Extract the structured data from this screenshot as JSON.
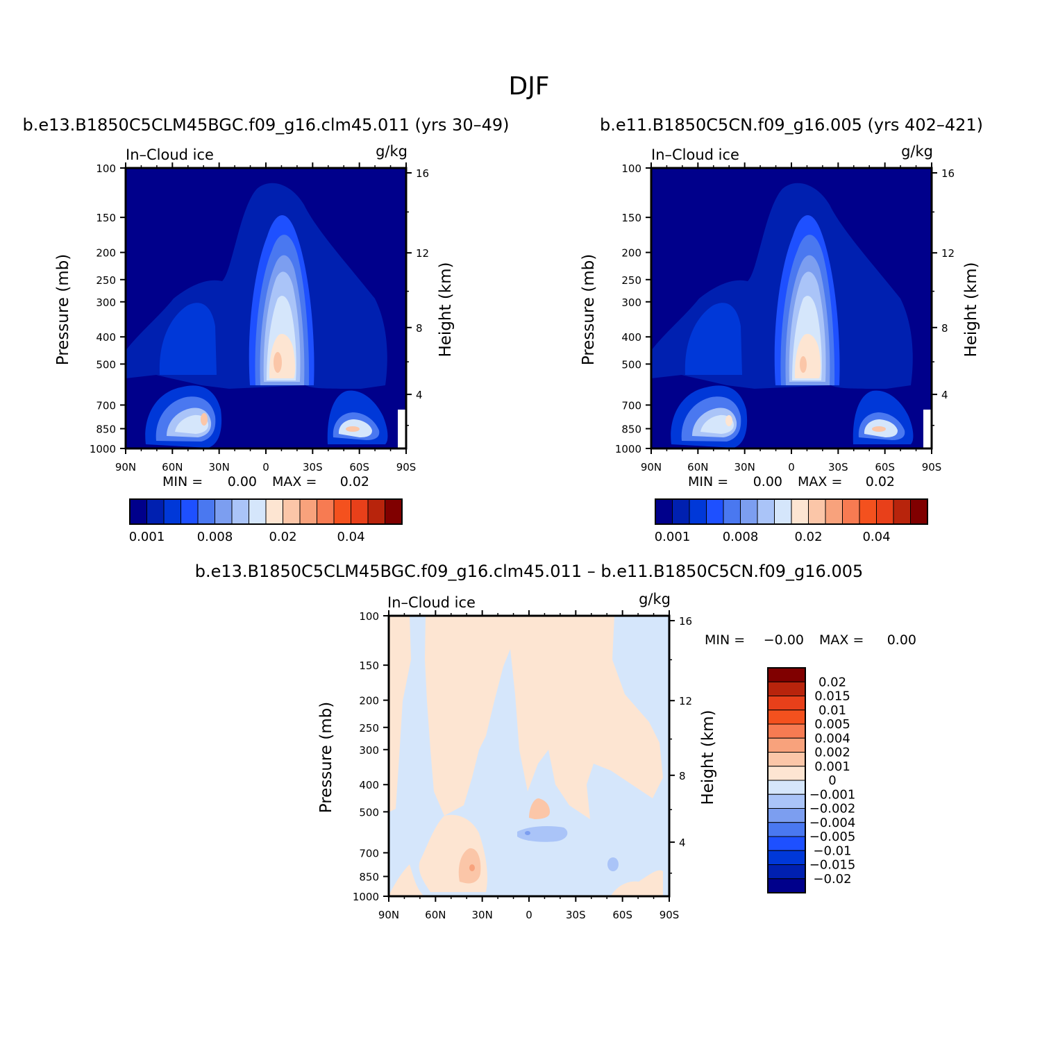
{
  "figure": {
    "season": "DJF",
    "case_a": "b.e13.B1850C5CLM45BGC.f09_g16.clm45.011 (yrs 30–49)",
    "case_b": "b.e11.B1850C5CN.f09_g16.005 (yrs 402–421)",
    "diff_title": "b.e13.B1850C5CLM45BGC.f09_g16.clm45.011 – b.e11.B1850C5CN.f09_g16.005"
  },
  "colors": {
    "seq": [
      "#00008b",
      "#0020b0",
      "#0038d8",
      "#1e50ff",
      "#4a78f0",
      "#7c9ef0",
      "#aac4f8",
      "#d5e6fb",
      "#fde5d2",
      "#fbc6a8",
      "#f8a27c",
      "#f77b52",
      "#f4511e",
      "#e8401a",
      "#b8240c",
      "#800000"
    ],
    "diff": [
      "#00008b",
      "#0020b0",
      "#0038d8",
      "#1e50ff",
      "#4a78f0",
      "#7c9ef0",
      "#aac4f8",
      "#d5e6fb",
      "#fde5d2",
      "#fbc6a8",
      "#f8a27c",
      "#f77b52",
      "#f4511e",
      "#e8401a",
      "#b8240c",
      "#800000"
    ]
  },
  "chart_data": [
    {
      "type": "heatmap",
      "id": "panel-a",
      "title": "b.e13.B1850C5CLM45BGC.f09_g16.clm45.011 (yrs 30–49)",
      "left_label": "In–Cloud ice",
      "units": "g/kg",
      "ylabel": "Pressure (mb)",
      "ylabel_right": "Height (km)",
      "x_ticks": [
        "90N",
        "60N",
        "30N",
        "0",
        "30S",
        "60S",
        "90S"
      ],
      "x_range": [
        90,
        -90
      ],
      "y_ticks": [
        100,
        150,
        200,
        250,
        300,
        400,
        500,
        700,
        850,
        1000
      ],
      "y_range": [
        100,
        1000
      ],
      "height_ticks": [
        16,
        12,
        8,
        4
      ],
      "min_label": "MIN =",
      "min_value": "0.00",
      "max_label": "MAX =",
      "max_value": "0.02",
      "colorbar_labels": [
        "0.001",
        "0.008",
        "0.02",
        "0.04"
      ],
      "features": [
        {
          "lat": -5,
          "p_center": 420,
          "p_top": 120,
          "p_bottom": 620,
          "peak": 0.02,
          "desc": "tropical upper maximum"
        },
        {
          "lat": 45,
          "p_center": 780,
          "p_top": 650,
          "p_bottom": 930,
          "peak": 0.02,
          "desc": "NH midlatitude low-level maximum"
        },
        {
          "lat": -58,
          "p_center": 820,
          "p_top": 690,
          "p_bottom": 930,
          "peak": 0.02,
          "desc": "SH midlatitude low-level maximum"
        }
      ]
    },
    {
      "type": "heatmap",
      "id": "panel-b",
      "title": "b.e11.B1850C5CN.f09_g16.005 (yrs 402–421)",
      "left_label": "In–Cloud ice",
      "units": "g/kg",
      "ylabel": "Pressure (mb)",
      "ylabel_right": "Height (km)",
      "x_ticks": [
        "90N",
        "60N",
        "30N",
        "0",
        "30S",
        "60S",
        "90S"
      ],
      "x_range": [
        90,
        -90
      ],
      "y_ticks": [
        100,
        150,
        200,
        250,
        300,
        400,
        500,
        700,
        850,
        1000
      ],
      "y_range": [
        100,
        1000
      ],
      "height_ticks": [
        16,
        12,
        8,
        4
      ],
      "min_label": "MIN =",
      "min_value": "0.00",
      "max_label": "MAX =",
      "max_value": "0.02",
      "colorbar_labels": [
        "0.001",
        "0.008",
        "0.02",
        "0.04"
      ],
      "features": [
        {
          "lat": -5,
          "p_center": 420,
          "p_top": 120,
          "p_bottom": 620,
          "peak": 0.02,
          "desc": "tropical upper maximum"
        },
        {
          "lat": 45,
          "p_center": 780,
          "p_top": 650,
          "p_bottom": 930,
          "peak": 0.02,
          "desc": "NH midlatitude low-level maximum"
        },
        {
          "lat": -58,
          "p_center": 820,
          "p_top": 690,
          "p_bottom": 930,
          "peak": 0.02,
          "desc": "SH midlatitude low-level maximum"
        }
      ]
    },
    {
      "type": "heatmap",
      "id": "panel-diff",
      "title": "b.e13.B1850C5CLM45BGC.f09_g16.clm45.011 – b.e11.B1850C5CN.f09_g16.005",
      "left_label": "In–Cloud ice",
      "units": "g/kg",
      "ylabel": "Pressure (mb)",
      "ylabel_right": "Height (km)",
      "x_ticks": [
        "90N",
        "60N",
        "30N",
        "0",
        "30S",
        "60S",
        "90S"
      ],
      "x_range": [
        90,
        -90
      ],
      "y_ticks": [
        100,
        150,
        200,
        250,
        300,
        400,
        500,
        700,
        850,
        1000
      ],
      "y_range": [
        100,
        1000
      ],
      "height_ticks": [
        16,
        12,
        8,
        4
      ],
      "min_label": "MIN =",
      "min_value": "−0.00",
      "max_label": "MAX =",
      "max_value": "0.00",
      "colorbar_labels": [
        "0.02",
        "0.015",
        "0.01",
        "0.005",
        "0.004",
        "0.002",
        "0.001",
        "0",
        "−0.001",
        "−0.002",
        "−0.004",
        "−0.005",
        "−0.01",
        "−0.015",
        "−0.02"
      ],
      "features": [
        {
          "lat": 35,
          "p_center": 800,
          "value": 0.002,
          "desc": "positive anomaly NH low levels"
        },
        {
          "lat": -5,
          "p_center": 560,
          "value": -0.002,
          "desc": "negative anomaly near equator"
        },
        {
          "lat": -3,
          "p_center": 470,
          "value": 0.002,
          "desc": "positive anomaly near equator"
        }
      ]
    }
  ]
}
